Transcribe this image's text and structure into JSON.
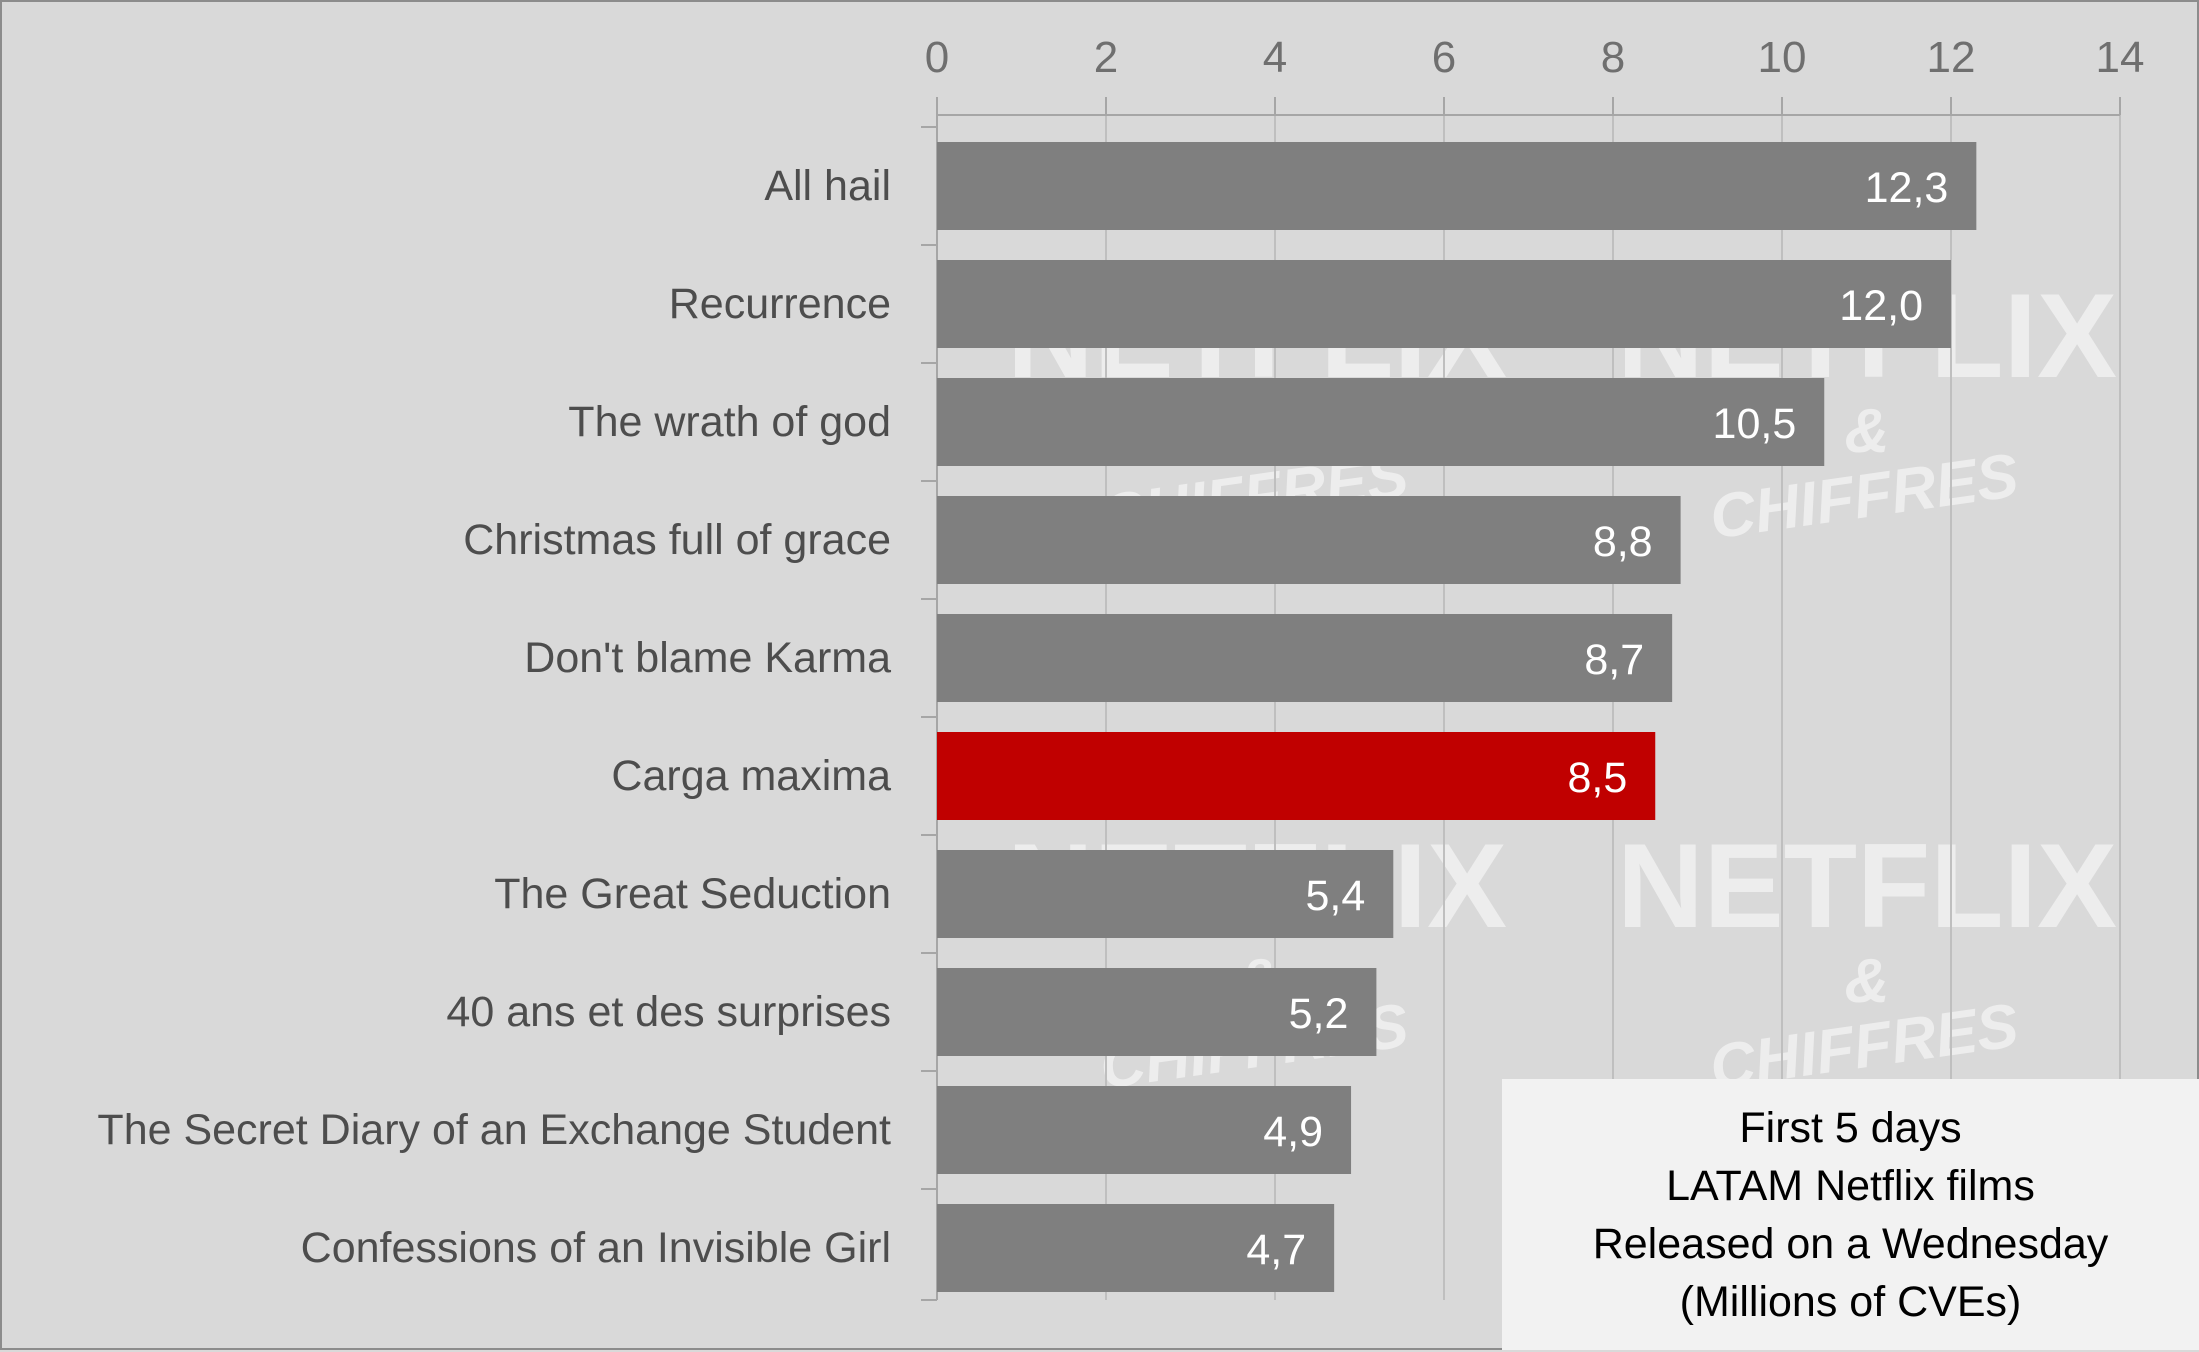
{
  "chart_data": {
    "type": "bar",
    "orientation": "horizontal",
    "categories": [
      "All hail",
      "Recurrence",
      "The wrath of god",
      "Christmas full of grace",
      "Don't blame Karma",
      "Carga maxima",
      "The Great Seduction",
      "40 ans et des surprises",
      "The Secret Diary of an Exchange Student",
      "Confessions of an Invisible Girl"
    ],
    "values": [
      12.3,
      12.0,
      10.5,
      8.8,
      8.7,
      8.5,
      5.4,
      5.2,
      4.9,
      4.7
    ],
    "value_labels": [
      "12,3",
      "12,0",
      "10,5",
      "8,8",
      "8,7",
      "8,5",
      "5,4",
      "5,2",
      "4,9",
      "4,7"
    ],
    "highlight_category": "Carga maxima",
    "xlim": [
      0,
      14
    ],
    "x_ticks": [
      "0",
      "2",
      "4",
      "6",
      "8",
      "10",
      "12",
      "14"
    ],
    "x_axis_position": "top",
    "grid": true,
    "title_lines": [
      "First 5 days",
      "LATAM Netflix films",
      "Released on a Wednesday",
      "(Millions of CVEs)"
    ],
    "title_placement": "bottom-right"
  },
  "watermark": {
    "main": "NETFLIX",
    "amp": "&",
    "sub": "CHIFFRES"
  },
  "colors": {
    "background": "#d9d9d9",
    "bar": "#7f7f7f",
    "highlight_bar": "#c00000",
    "grid": "#bfbfbf",
    "title_box": "#f2f2f2"
  }
}
